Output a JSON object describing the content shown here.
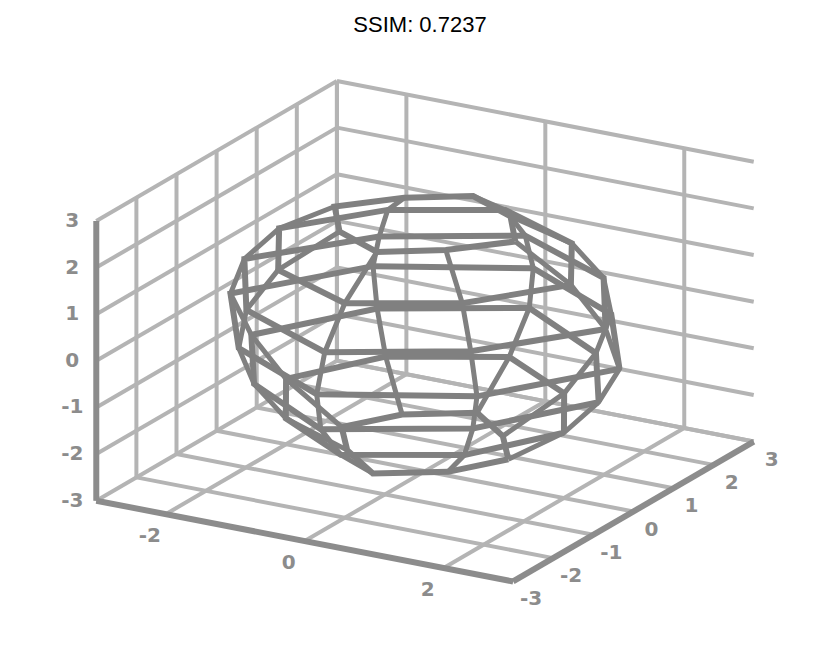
{
  "chart_data": {
    "type": "surface3d",
    "title": "SSIM: 0.7237",
    "xlim": [
      -3,
      3
    ],
    "ylim": [
      -3,
      3
    ],
    "zlim": [
      -3,
      3
    ],
    "xticks": [
      -2,
      0,
      2
    ],
    "yticks": [
      -3,
      -2,
      -1,
      0,
      1,
      2,
      3
    ],
    "zticks": [
      -3,
      -2,
      -1,
      0,
      1,
      2,
      3
    ],
    "grid": true,
    "color": "#808080",
    "rings": [
      {
        "z": -2.4,
        "x": [
          1.2,
          0.71,
          0,
          -0.78,
          -1.2,
          -0.71,
          0,
          0.78
        ],
        "y": [
          0,
          0.71,
          1.3,
          0.78,
          0,
          -0.71,
          -1.3,
          -0.78
        ]
      },
      {
        "z": -1.6,
        "x": [
          2.0,
          1.27,
          0,
          -1.34,
          -2.0,
          -1.27,
          0,
          1.34
        ],
        "y": [
          0,
          1.27,
          2.1,
          1.34,
          0,
          -1.27,
          -2.1,
          -1.34
        ]
      },
      {
        "z": -0.8,
        "x": [
          2.5,
          1.56,
          0,
          -1.63,
          -2.5,
          -1.56,
          0,
          1.63
        ],
        "y": [
          0,
          1.56,
          2.6,
          1.63,
          0,
          -1.56,
          -2.6,
          -1.63
        ]
      },
      {
        "z": 0,
        "x": [
          2.8,
          1.7,
          0,
          -1.77,
          -2.8,
          -1.7,
          0,
          1.77
        ],
        "y": [
          0,
          1.7,
          2.7,
          1.77,
          0,
          -1.7,
          -2.7,
          -1.77
        ]
      },
      {
        "z": 0.8,
        "x": [
          2.6,
          1.63,
          0,
          -1.56,
          -2.6,
          -1.63,
          0,
          1.56
        ],
        "y": [
          0,
          1.63,
          2.5,
          1.56,
          0,
          -1.63,
          -2.5,
          -1.56
        ]
      },
      {
        "z": 1.6,
        "x": [
          2.1,
          1.34,
          0,
          -1.27,
          -2.1,
          -1.34,
          0,
          1.27
        ],
        "y": [
          0,
          1.34,
          2.0,
          1.27,
          0,
          -1.34,
          -2.0,
          -1.27
        ]
      },
      {
        "z": 2.3,
        "x": [
          1.3,
          0.78,
          0,
          -0.71,
          -1.3,
          -0.78,
          0,
          0.71
        ],
        "y": [
          0,
          0.78,
          1.2,
          0.71,
          0,
          -0.78,
          -1.2,
          -0.71
        ]
      }
    ]
  }
}
